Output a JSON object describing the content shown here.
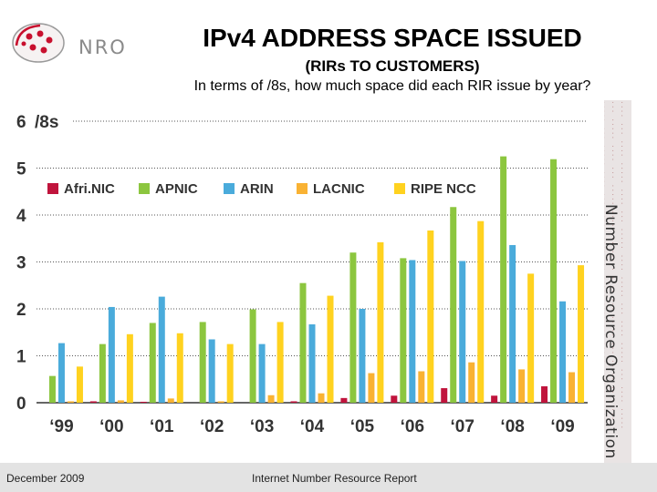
{
  "header": {
    "logo_text": "NRO",
    "title": "IPv4 ADDRESS SPACE ISSUED",
    "subtitle": "(RIRs TO CUSTOMERS)",
    "question": "In terms of /8s, how much space did each RIR issue by year?"
  },
  "side": {
    "label": "Number Resource Organization"
  },
  "footer": {
    "left": "December 2009",
    "center": "Internet Number Resource Report"
  },
  "colors": {
    "afrinic": "#c0143c",
    "apnic": "#8cc63f",
    "arin": "#4aabdb",
    "lacnic": "#f9b233",
    "ripe": "#ffd21f"
  },
  "chart_data": {
    "type": "bar",
    "title": "IPv4 ADDRESS SPACE ISSUED",
    "ylabel": "/8s",
    "ylim": [
      0,
      6
    ],
    "yticks": [
      "0",
      "1",
      "2",
      "3",
      "4",
      "5",
      "6"
    ],
    "top_tick_suffix": "/8s",
    "grid": true,
    "legend_position": "top-left",
    "categories": [
      "‘99",
      "‘00",
      "‘01",
      "‘02",
      "‘03",
      "‘04",
      "‘05",
      "‘06",
      "‘07",
      "‘08",
      "‘09"
    ],
    "series": [
      {
        "name": "Afri.NIC",
        "color": "#c0143c",
        "values": [
          0.0,
          0.03,
          0.02,
          0.0,
          0.0,
          0.03,
          0.1,
          0.15,
          0.31,
          0.15,
          0.35
        ]
      },
      {
        "name": "APNIC",
        "color": "#8cc63f",
        "values": [
          0.57,
          1.25,
          1.7,
          1.72,
          1.99,
          2.55,
          3.2,
          3.08,
          4.17,
          5.25,
          5.19
        ]
      },
      {
        "name": "ARIN",
        "color": "#4aabdb",
        "values": [
          1.27,
          2.04,
          2.26,
          1.35,
          1.25,
          1.67,
          2.0,
          3.04,
          3.02,
          3.36,
          2.16
        ]
      },
      {
        "name": "LACNIC",
        "color": "#f9b233",
        "values": [
          0.03,
          0.05,
          0.09,
          0.03,
          0.16,
          0.2,
          0.63,
          0.67,
          0.86,
          0.71,
          0.65
        ]
      },
      {
        "name": "RIPE NCC",
        "color": "#ffd21f",
        "values": [
          0.77,
          1.46,
          1.48,
          1.25,
          1.72,
          2.28,
          3.42,
          3.67,
          3.87,
          2.75,
          2.93
        ]
      }
    ]
  }
}
